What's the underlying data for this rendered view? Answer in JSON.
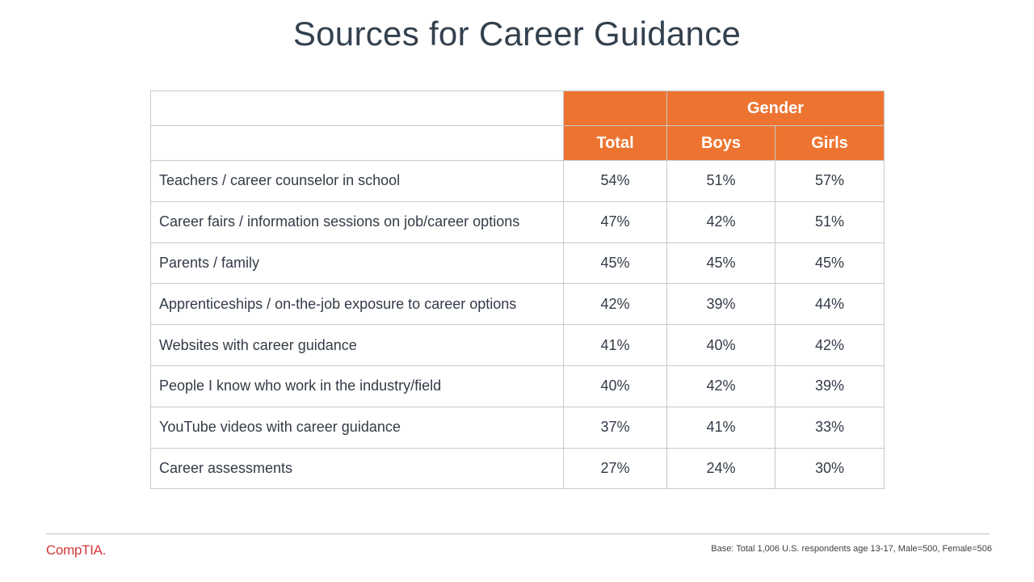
{
  "title": "Sources for Career Guidance",
  "table": {
    "group_header": "Gender",
    "columns": [
      "Total",
      "Boys",
      "Girls"
    ],
    "rows": [
      {
        "label": "Teachers / career counselor in school",
        "total": "54%",
        "boys": "51%",
        "girls": "57%"
      },
      {
        "label": "Career fairs / information sessions on job/career options",
        "total": "47%",
        "boys": "42%",
        "girls": "51%"
      },
      {
        "label": "Parents / family",
        "total": "45%",
        "boys": "45%",
        "girls": "45%"
      },
      {
        "label": "Apprenticeships / on-the-job exposure to career options",
        "total": "42%",
        "boys": "39%",
        "girls": "44%"
      },
      {
        "label": "Websites with career guidance",
        "total": "41%",
        "boys": "40%",
        "girls": "42%"
      },
      {
        "label": "People I know who work in the industry/field",
        "total": "40%",
        "boys": "42%",
        "girls": "39%"
      },
      {
        "label": "YouTube videos with career guidance",
        "total": "37%",
        "boys": "41%",
        "girls": "33%"
      },
      {
        "label": "Career assessments",
        "total": "27%",
        "boys": "24%",
        "girls": "30%"
      }
    ]
  },
  "footer": {
    "logo_text": "CompTIA.",
    "base_note": "Base: Total 1,006 U.S. respondents age 13-17, Male=500, Female=506"
  },
  "colors": {
    "header_orange": "#ed7430",
    "logo_red": "#d5373b",
    "title_text": "#33414e"
  }
}
